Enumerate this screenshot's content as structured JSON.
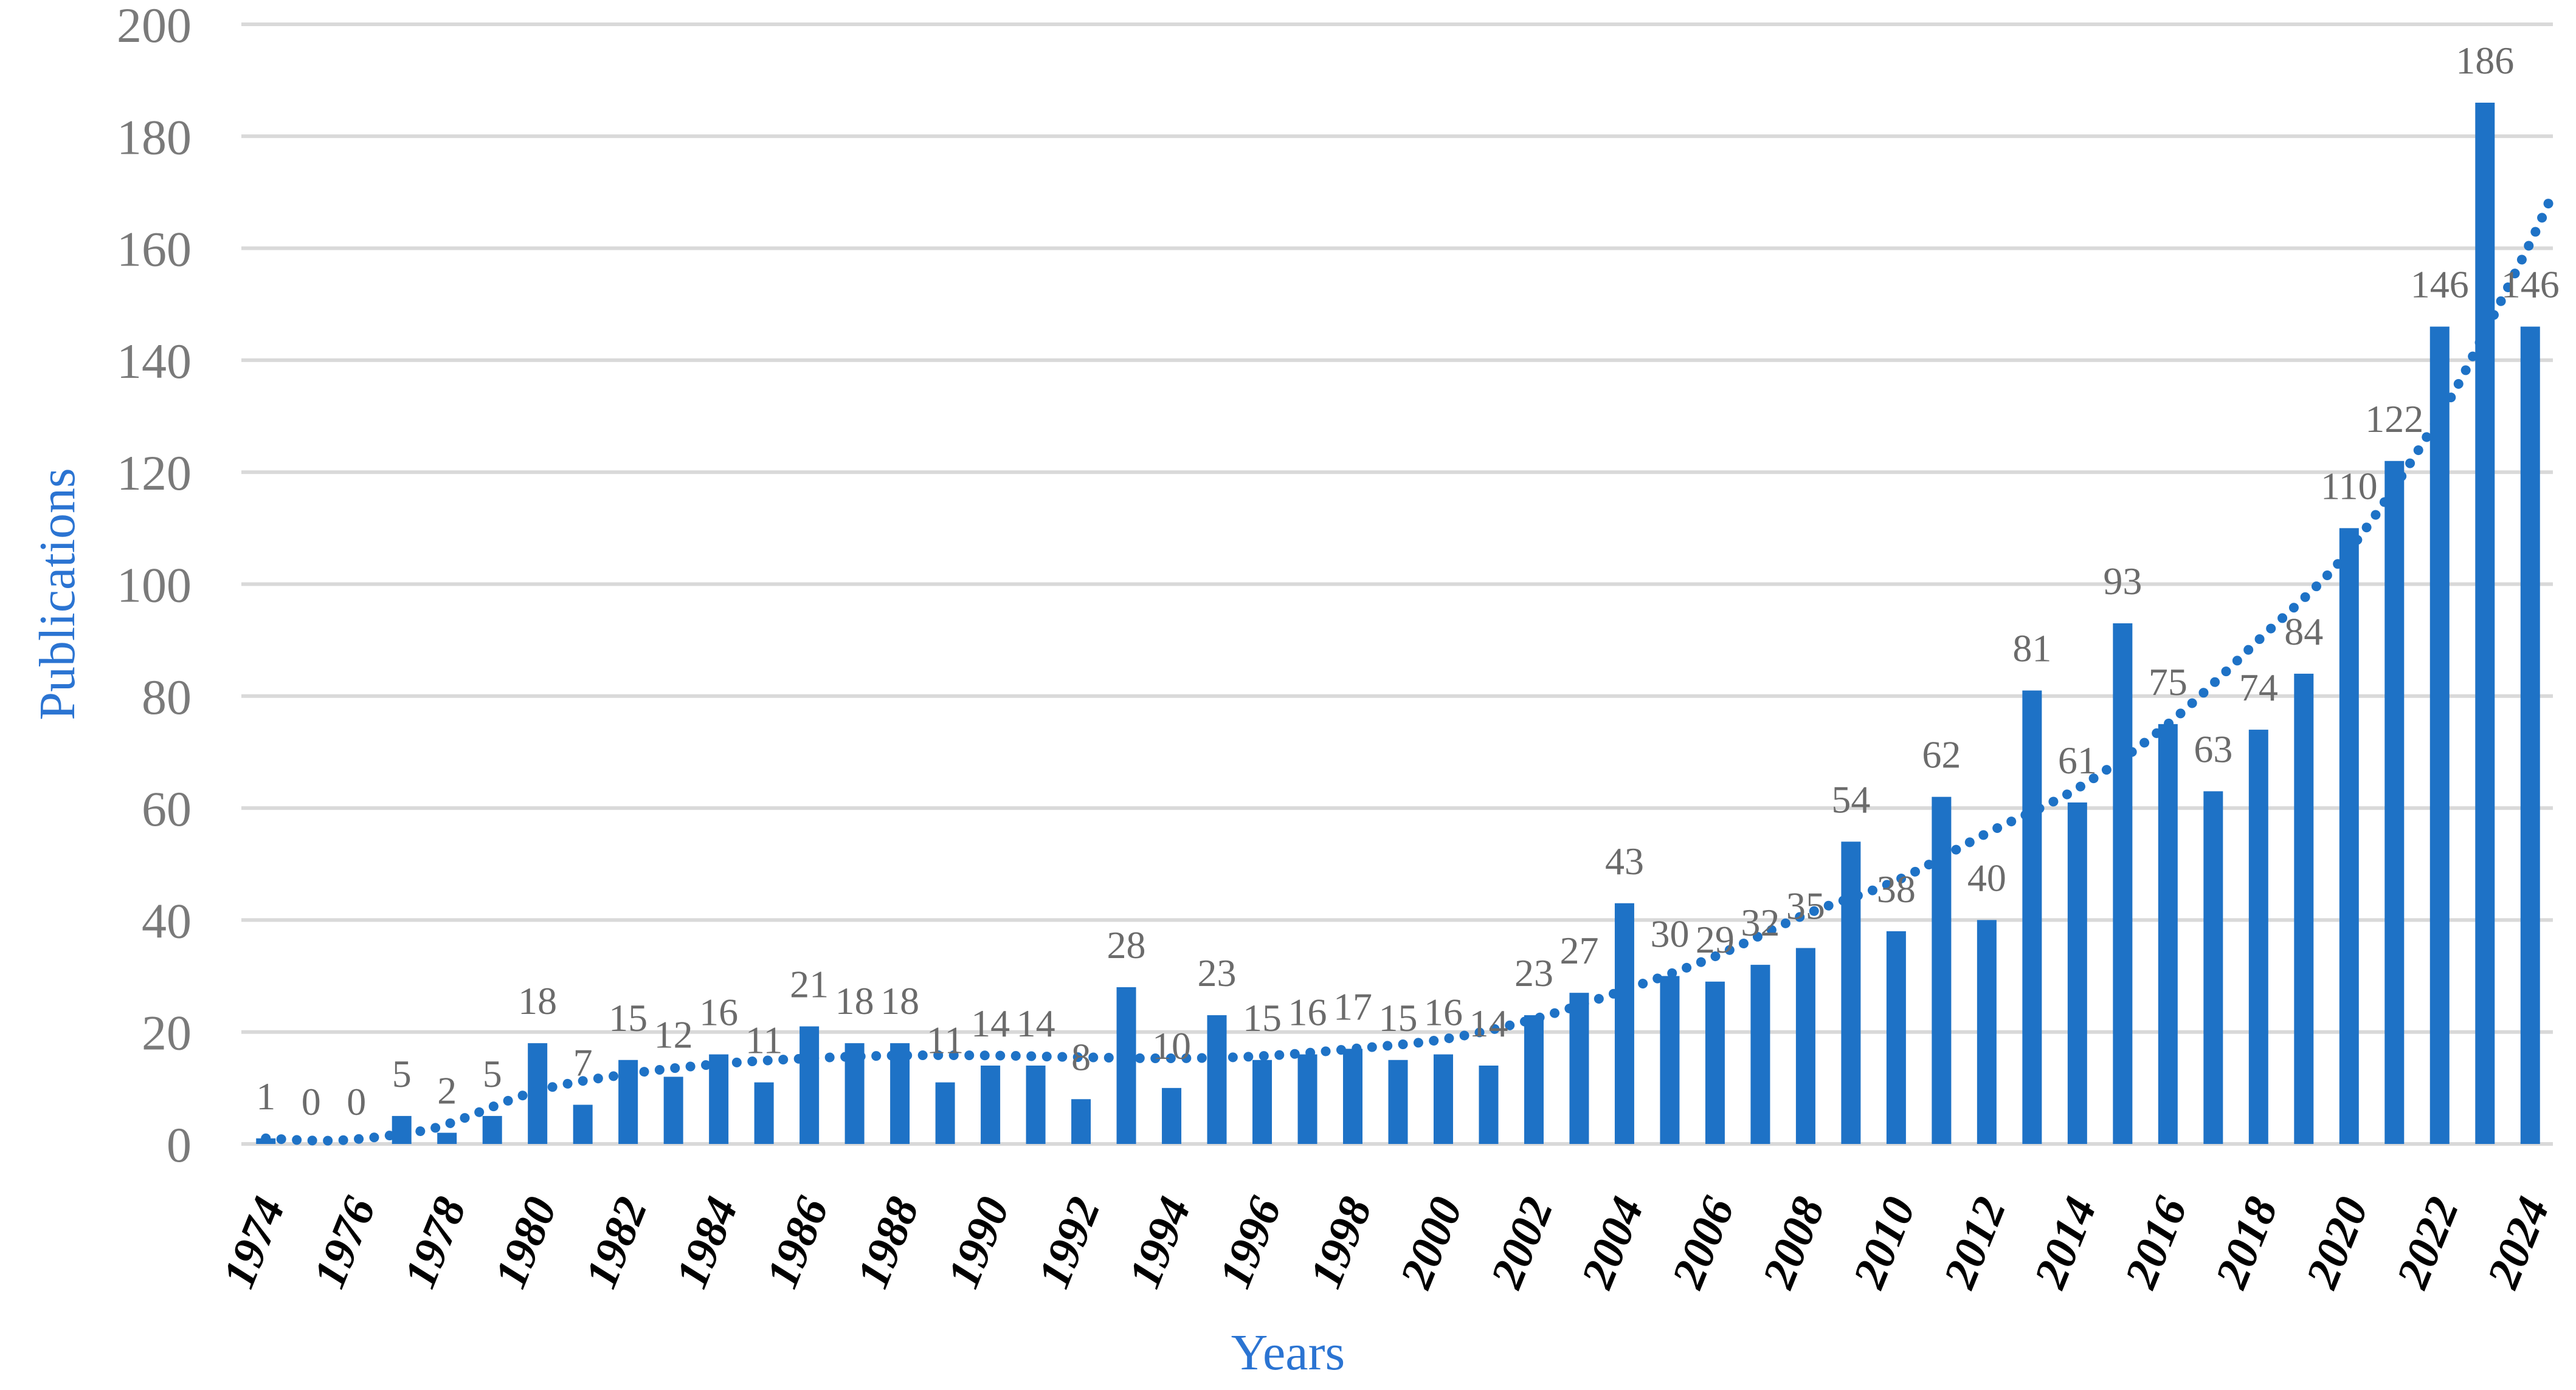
{
  "chart_data": {
    "type": "bar",
    "title": "",
    "xlabel": "Years",
    "ylabel": "Publications",
    "categories": [
      1974,
      1975,
      1976,
      1977,
      1978,
      1979,
      1980,
      1981,
      1982,
      1983,
      1984,
      1985,
      1986,
      1987,
      1988,
      1989,
      1990,
      1991,
      1992,
      1993,
      1994,
      1995,
      1996,
      1997,
      1998,
      1999,
      2000,
      2001,
      2002,
      2003,
      2004,
      2005,
      2006,
      2007,
      2008,
      2009,
      2010,
      2011,
      2012,
      2013,
      2014,
      2015,
      2016,
      2017,
      2018,
      2019,
      2020,
      2021,
      2022,
      2023,
      2024
    ],
    "values": [
      1,
      0,
      0,
      5,
      2,
      5,
      18,
      7,
      15,
      12,
      16,
      11,
      21,
      18,
      18,
      11,
      14,
      14,
      8,
      28,
      10,
      23,
      15,
      16,
      17,
      15,
      16,
      14,
      23,
      27,
      43,
      30,
      29,
      32,
      35,
      54,
      38,
      62,
      40,
      81,
      61,
      93,
      75,
      63,
      74,
      84,
      110,
      122,
      146,
      186,
      146
    ],
    "data_labels_visible": true,
    "yticks": [
      0,
      20,
      40,
      60,
      80,
      100,
      120,
      140,
      160,
      180,
      200
    ],
    "xticks": [
      1974,
      1976,
      1978,
      1980,
      1982,
      1984,
      1986,
      1988,
      1990,
      1992,
      1994,
      1996,
      1998,
      2000,
      2002,
      2004,
      2006,
      2008,
      2010,
      2012,
      2014,
      2016,
      2018,
      2020,
      2022,
      2024
    ],
    "ylim": [
      0,
      200
    ],
    "grid": "horizontal",
    "legend": "none",
    "trendline": {
      "style": "dotted",
      "points": [
        [
          1974,
          1
        ],
        [
          1975.5,
          0.6
        ],
        [
          1977,
          1.8
        ],
        [
          1978,
          3.5
        ],
        [
          1980,
          9.5
        ],
        [
          1982,
          12.5
        ],
        [
          1984,
          14.3
        ],
        [
          1986,
          15.3
        ],
        [
          1988,
          15.8
        ],
        [
          1990,
          15.8
        ],
        [
          1992,
          15.5
        ],
        [
          1994,
          15.3
        ],
        [
          1996,
          15.7
        ],
        [
          1998,
          17
        ],
        [
          2000,
          18.7
        ],
        [
          2002,
          22.3
        ],
        [
          2004,
          27.5
        ],
        [
          2006,
          33.5
        ],
        [
          2008,
          41
        ],
        [
          2010,
          47
        ],
        [
          2012,
          55.5
        ],
        [
          2014,
          63.5
        ],
        [
          2016,
          75
        ],
        [
          2018,
          90
        ],
        [
          2020,
          106
        ],
        [
          2022,
          130
        ],
        [
          2023,
          145
        ],
        [
          2024,
          161
        ],
        [
          2024.4,
          168
        ]
      ]
    },
    "colors": {
      "bar": "#1E72C6",
      "trendline": "#1E72C6",
      "gridline": "#D9D9D9",
      "tick_label": "#7A7A7A",
      "data_label": "#6B6B6B",
      "year_label": "#000000",
      "axis_title": "#2B74D2",
      "background": "#FFFFFF"
    }
  }
}
